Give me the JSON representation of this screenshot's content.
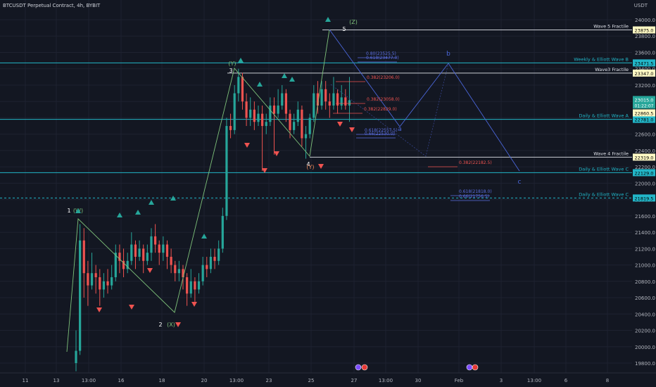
{
  "header": {
    "symbol_title": "BTCUSDT Perpetual Contract, 4h, BYBIT",
    "currency": "USDT"
  },
  "colors": {
    "background": "#131722",
    "up": "#26a69a",
    "down": "#ef5350",
    "grid": "#1e2230",
    "axis_text": "#b2b5be",
    "cyan_line": "#22b6c8",
    "white_line": "#c8cbd2",
    "fib_blue": "#5b6ee1",
    "fib_red": "#ef5350",
    "wave_green": "#7ec27a",
    "wave_blue": "#4a66d9"
  },
  "chart_data": {
    "type": "candlestick",
    "title": "BTCUSDT Perpetual Contract, 4h, BYBIT",
    "ylabel": "USDT",
    "ylim": [
      19700,
      24100
    ],
    "x_ticks": [
      "11",
      "13",
      "13:00",
      "16",
      "18",
      "20",
      "13:00",
      "23",
      "25",
      "27",
      "13:00",
      "30",
      "Feb",
      "3",
      "13:00",
      "6",
      "8"
    ],
    "y_ticks": [
      19800,
      20000,
      20200,
      20400,
      20600,
      20800,
      21000,
      21200,
      21400,
      21600,
      21800,
      22000,
      22200,
      22400,
      22600,
      22800,
      23000,
      23200,
      23400,
      23600,
      23800,
      24000
    ],
    "candles": [
      [
        19800,
        19950,
        19700,
        20200
      ],
      [
        19950,
        21300,
        19900,
        21500
      ],
      [
        21300,
        20900,
        20600,
        21450
      ],
      [
        20900,
        20750,
        20500,
        21050
      ],
      [
        20750,
        20900,
        20700,
        21150
      ],
      [
        20900,
        20850,
        20650,
        21000
      ],
      [
        20850,
        20700,
        20500,
        20950
      ],
      [
        20700,
        20800,
        20600,
        20900
      ],
      [
        20800,
        20750,
        20650,
        20950
      ],
      [
        20750,
        20850,
        20700,
        21000
      ],
      [
        20850,
        21150,
        20800,
        21250
      ],
      [
        21150,
        21050,
        20900,
        21250
      ],
      [
        21050,
        20950,
        20850,
        21200
      ],
      [
        20950,
        21050,
        20900,
        21150
      ],
      [
        21050,
        21250,
        21000,
        21400
      ],
      [
        21250,
        21100,
        20950,
        21300
      ],
      [
        21100,
        21200,
        21050,
        21300
      ],
      [
        21200,
        21050,
        20900,
        21250
      ],
      [
        21050,
        21150,
        21000,
        21250
      ],
      [
        21150,
        21350,
        21050,
        21450
      ],
      [
        21350,
        21250,
        21150,
        21500
      ],
      [
        21250,
        21150,
        21000,
        21300
      ],
      [
        21150,
        21250,
        21050,
        21350
      ],
      [
        21250,
        21100,
        20950,
        21300
      ],
      [
        21100,
        21000,
        20900,
        21200
      ],
      [
        21000,
        20900,
        20800,
        21050
      ],
      [
        20900,
        20950,
        20800,
        21050
      ],
      [
        20950,
        20850,
        20700,
        21000
      ],
      [
        20850,
        20650,
        20500,
        20900
      ],
      [
        20650,
        20800,
        20600,
        20950
      ],
      [
        20800,
        20700,
        20550,
        20850
      ],
      [
        20700,
        20800,
        20650,
        20900
      ],
      [
        20800,
        21000,
        20750,
        21100
      ],
      [
        21000,
        20950,
        20850,
        21100
      ],
      [
        20950,
        21100,
        20900,
        21200
      ],
      [
        21100,
        21050,
        20950,
        21200
      ],
      [
        21050,
        21200,
        21000,
        21300
      ],
      [
        21200,
        21600,
        21150,
        21700
      ],
      [
        21600,
        22700,
        21550,
        22800
      ],
      [
        22700,
        22650,
        22550,
        22850
      ],
      [
        22650,
        23100,
        22600,
        23200
      ],
      [
        23100,
        23300,
        23000,
        23400
      ],
      [
        23300,
        23000,
        22900,
        23350
      ],
      [
        23000,
        22800,
        22700,
        23100
      ],
      [
        22800,
        22900,
        22700,
        23050
      ],
      [
        22900,
        22750,
        22650,
        23000
      ],
      [
        22750,
        22850,
        22700,
        22950
      ],
      [
        22850,
        22700,
        22150,
        22950
      ],
      [
        22700,
        22750,
        22600,
        22850
      ],
      [
        22750,
        22950,
        22700,
        23050
      ],
      [
        22950,
        22850,
        22350,
        23050
      ],
      [
        22850,
        22950,
        22800,
        23150
      ],
      [
        22950,
        23100,
        22900,
        23200
      ],
      [
        23100,
        22850,
        22750,
        23150
      ],
      [
        22850,
        22650,
        22550,
        22900
      ],
      [
        22650,
        22750,
        22600,
        22850
      ],
      [
        22750,
        22900,
        22700,
        23000
      ],
      [
        22900,
        22550,
        22450,
        22950
      ],
      [
        22550,
        22600,
        22300,
        22700
      ],
      [
        22600,
        22800,
        22550,
        22850
      ],
      [
        22800,
        23100,
        22750,
        23200
      ],
      [
        23100,
        22950,
        22850,
        23250
      ],
      [
        22950,
        23150,
        22900,
        23250
      ],
      [
        23150,
        23000,
        22900,
        23250
      ],
      [
        23000,
        22950,
        22800,
        23100
      ],
      [
        22950,
        23100,
        22900,
        23300
      ],
      [
        23100,
        22950,
        22850,
        23150
      ],
      [
        22950,
        23050,
        22900,
        23200
      ],
      [
        23050,
        22950,
        22900,
        23150
      ],
      [
        22950,
        23015,
        22750,
        23300
      ]
    ],
    "horizontal_levels": [
      {
        "label": "Wave 5 Fractile",
        "price": 23875.0,
        "price_label": "23875.0"
      },
      {
        "label": "Weekly & Elliott Wave B",
        "price": 23471.5,
        "price_label": "23471.5"
      },
      {
        "label": "Wave3 Fractile",
        "price": 23347.0,
        "price_label": "23347.0"
      },
      {
        "label": "Daily & Elliott Wave A",
        "price": 22781.0,
        "price_label": "22781.0"
      },
      {
        "label": "Wave 4 Fractile",
        "price": 22319.0,
        "price_label": "22319.0"
      },
      {
        "label": "Daily & Elliott Wave C",
        "price": 22129.0,
        "price_label": "22129.0"
      },
      {
        "label": "Daily & Elliott Wave C",
        "price": 21819.5,
        "price_label": "21819.5"
      }
    ],
    "current_price": {
      "value": "23015.0",
      "countdown": "01:22:07"
    },
    "marked_price": "22860.5",
    "fib_labels": {
      "blue": [
        "0.80(23525.5)",
        "0.618(23477.0)",
        "0.618(22557.5)",
        "0.66(22530.0)",
        "0.618(21818.0)",
        "0.66(21756.5)"
      ],
      "red": [
        "0.382(23206.0)",
        "0.382(23058.0)",
        "0.382(22829.0)",
        "0.382(22182.5)"
      ]
    },
    "wave_labels": [
      "1",
      "(W)",
      "2",
      "(X)",
      "3",
      "(Y)",
      "4",
      "(Y)",
      "5",
      "(Z)"
    ],
    "abc_labels": [
      "a",
      "b",
      "c"
    ]
  }
}
